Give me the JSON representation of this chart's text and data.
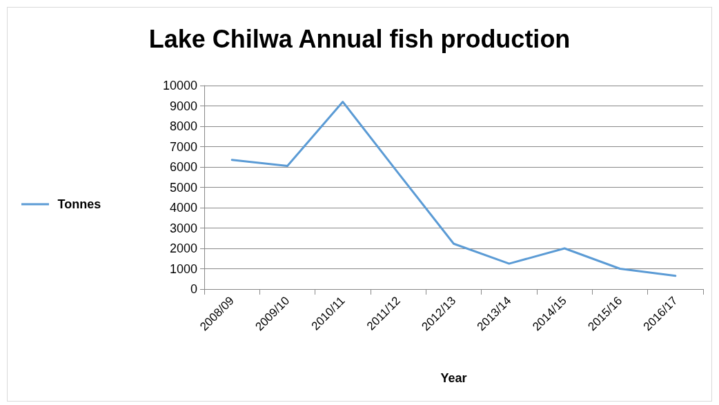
{
  "chart_data": {
    "type": "line",
    "title": "Lake Chilwa Annual fish production",
    "xlabel": "Year",
    "categories": [
      "2008/09",
      "2009/10",
      "2010/11",
      "2011/12",
      "2012/13",
      "2013/14",
      "2014/15",
      "2015/16",
      "2016/17"
    ],
    "series": [
      {
        "name": "Tonnes",
        "color": "#5b9bd5",
        "values": [
          6350,
          6050,
          9200,
          5700,
          2230,
          1250,
          2000,
          1000,
          650
        ]
      }
    ],
    "ylim": [
      0,
      10000
    ],
    "yticks": [
      0,
      1000,
      2000,
      3000,
      4000,
      5000,
      6000,
      7000,
      8000,
      9000,
      10000
    ],
    "grid": "y",
    "legend": "left",
    "marker": "none",
    "line_style": "solid"
  }
}
